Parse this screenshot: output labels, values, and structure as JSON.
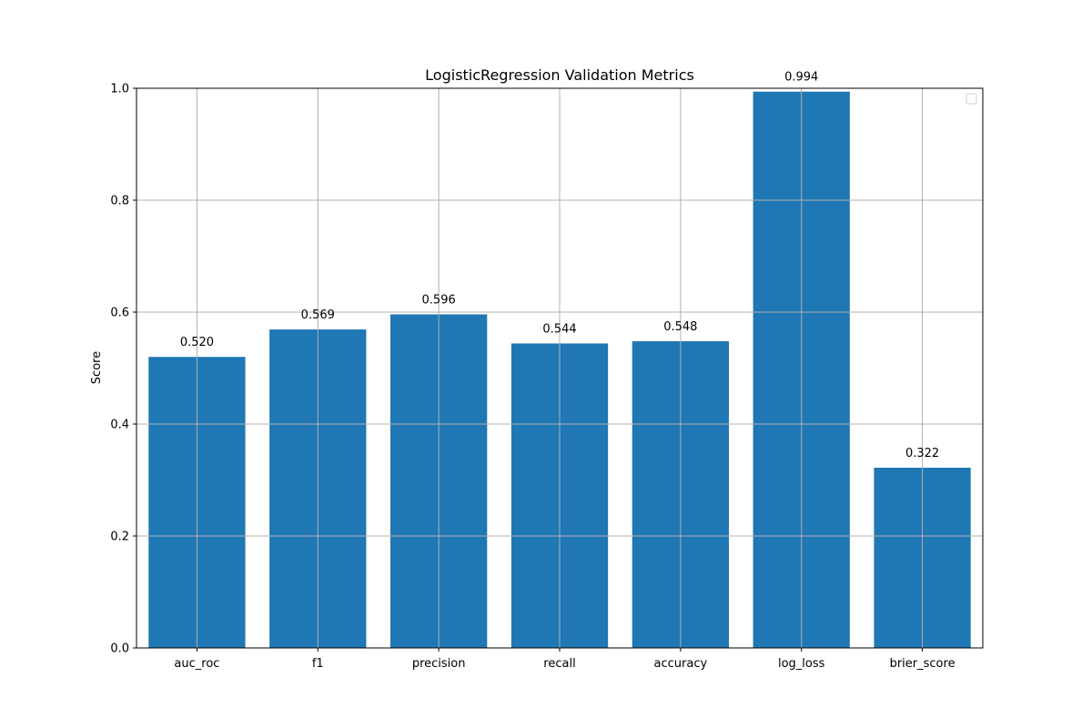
{
  "chart_data": {
    "type": "bar",
    "title": "LogisticRegression Validation Metrics",
    "xlabel": "",
    "ylabel": "Score",
    "categories": [
      "auc_roc",
      "f1",
      "precision",
      "recall",
      "accuracy",
      "log_loss",
      "brier_score"
    ],
    "values": [
      0.52,
      0.569,
      0.596,
      0.544,
      0.548,
      0.994,
      0.322
    ],
    "value_labels": [
      "0.520",
      "0.569",
      "0.596",
      "0.544",
      "0.548",
      "0.994",
      "0.322"
    ],
    "ylim": [
      0,
      1.0
    ],
    "yticks": [
      0.0,
      0.2,
      0.4,
      0.6,
      0.8,
      1.0
    ],
    "ytick_labels": [
      "0.0",
      "0.2",
      "0.4",
      "0.6",
      "0.8",
      "1.0"
    ],
    "grid": true,
    "legend": "top-right (empty)",
    "colors": {
      "bar": "#1f77b4",
      "grid": "#b0b0b0",
      "axis": "#000000"
    }
  }
}
